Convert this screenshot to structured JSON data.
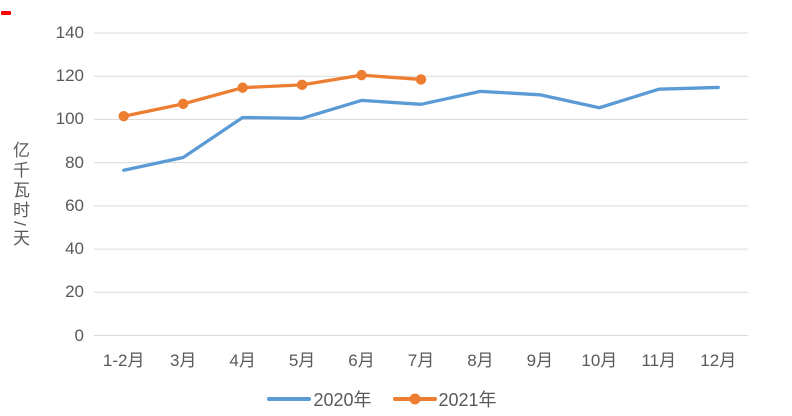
{
  "decorations": {
    "corner_mark_color": "#FF0000"
  },
  "chart_data": {
    "type": "line",
    "title": "",
    "xlabel": "",
    "ylabel": "亿千瓦时/天",
    "categories": [
      "1-2月",
      "3月",
      "4月",
      "5月",
      "6月",
      "7月",
      "8月",
      "9月",
      "10月",
      "11月",
      "12月"
    ],
    "series": [
      {
        "name": "2020年",
        "color": "#5B9BD5",
        "marker": "none",
        "values": [
          76.5,
          82.4,
          100.9,
          100.5,
          108.8,
          107.0,
          113.0,
          111.4,
          105.4,
          114.0,
          114.8
        ]
      },
      {
        "name": "2021年",
        "color": "#ED7D31",
        "marker": "circle",
        "values": [
          101.5,
          107.2,
          114.7,
          116.0,
          120.5,
          118.5,
          null,
          null,
          null,
          null,
          null
        ]
      }
    ],
    "ylim": [
      0,
      140
    ],
    "ytick_step": 20,
    "yticks": [
      "0",
      "20",
      "40",
      "60",
      "80",
      "100",
      "120",
      "140"
    ],
    "grid": "horizontal",
    "gridline_color": "#D9D9D9",
    "axis_text_color": "#595959",
    "legend_position": "bottom"
  }
}
